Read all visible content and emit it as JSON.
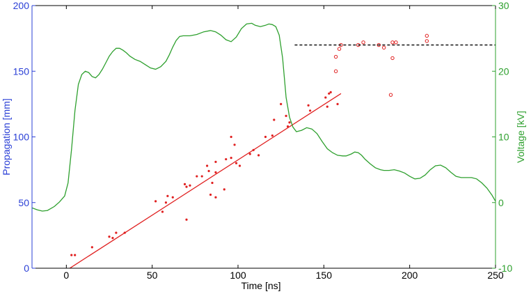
{
  "chart_data": {
    "type": "scatter",
    "xlabel": "Time [ns]",
    "ylabel_left": "Propagation [mm]",
    "ylabel_right": "Voltage [kV]",
    "xlim": [
      -20,
      250
    ],
    "ylim_left": [
      0,
      200
    ],
    "ylim_right": [
      -10,
      30
    ],
    "x_ticks": [
      0,
      50,
      100,
      150,
      200,
      250
    ],
    "y_ticks_left": [
      0,
      50,
      100,
      150,
      200
    ],
    "y_ticks_right": [
      -10,
      0,
      10,
      20,
      30
    ],
    "grid": false,
    "legend": "none",
    "colors": {
      "left_axis": "#2a3fd6",
      "right_axis": "#2ea02e",
      "points": "#e02020",
      "fit_line": "#e02020",
      "voltage": "#2ea02e",
      "reference": "#000000"
    },
    "series": [
      {
        "kind": "scatter-dots",
        "axis": "left",
        "points": [
          [
            3,
            10
          ],
          [
            5,
            10
          ],
          [
            15,
            16
          ],
          [
            25,
            24
          ],
          [
            27,
            23
          ],
          [
            29,
            27
          ],
          [
            34,
            27
          ],
          [
            52,
            51
          ],
          [
            56,
            43
          ],
          [
            58,
            50
          ],
          [
            59,
            55
          ],
          [
            62,
            54
          ],
          [
            69,
            64
          ],
          [
            70,
            37
          ],
          [
            70,
            62
          ],
          [
            72,
            63
          ],
          [
            76,
            70
          ],
          [
            79,
            70
          ],
          [
            83,
            74
          ],
          [
            82,
            78
          ],
          [
            85,
            65
          ],
          [
            84,
            56
          ],
          [
            87,
            73
          ],
          [
            87,
            54
          ],
          [
            87,
            81
          ],
          [
            92,
            60
          ],
          [
            93,
            83
          ],
          [
            96,
            84
          ],
          [
            96,
            100
          ],
          [
            98,
            94
          ],
          [
            99,
            80
          ],
          [
            101,
            78
          ],
          [
            107,
            87
          ],
          [
            109,
            90
          ],
          [
            112,
            86
          ],
          [
            116,
            100
          ],
          [
            120,
            101
          ],
          [
            121,
            113
          ],
          [
            125,
            125
          ],
          [
            128,
            116
          ],
          [
            129,
            108
          ],
          [
            130,
            111
          ],
          [
            141,
            124
          ],
          [
            142,
            120
          ],
          [
            151,
            130
          ],
          [
            152,
            123
          ],
          [
            153,
            133
          ],
          [
            154,
            134
          ],
          [
            158,
            125
          ]
        ]
      },
      {
        "kind": "scatter-circles",
        "axis": "left",
        "points": [
          [
            157,
            150
          ],
          [
            157,
            161
          ],
          [
            159,
            167
          ],
          [
            160,
            170
          ],
          [
            170,
            170
          ],
          [
            173,
            172
          ],
          [
            182,
            170
          ],
          [
            185,
            168
          ],
          [
            189,
            132
          ],
          [
            190,
            172
          ],
          [
            190,
            160
          ],
          [
            192,
            172
          ],
          [
            210,
            177
          ],
          [
            210,
            173
          ]
        ]
      },
      {
        "kind": "fit-line",
        "axis": "left",
        "points": [
          [
            2,
            0
          ],
          [
            160,
            133
          ]
        ]
      },
      {
        "kind": "reference-line",
        "axis": "left",
        "points": [
          [
            133,
            170
          ],
          [
            250,
            170
          ]
        ]
      },
      {
        "kind": "voltage-line",
        "axis": "right",
        "points": [
          [
            -20,
            -0.8
          ],
          [
            -17,
            -1.1
          ],
          [
            -14,
            -1.3
          ],
          [
            -11,
            -1.2
          ],
          [
            -7,
            -0.6
          ],
          [
            -4,
            0.1
          ],
          [
            -1,
            1
          ],
          [
            1,
            3
          ],
          [
            3,
            8
          ],
          [
            5,
            14
          ],
          [
            7,
            18
          ],
          [
            9,
            19.5
          ],
          [
            11,
            20
          ],
          [
            13,
            19.8
          ],
          [
            15,
            19.2
          ],
          [
            17,
            19
          ],
          [
            19,
            19.5
          ],
          [
            21,
            20.3
          ],
          [
            23,
            21.3
          ],
          [
            25,
            22.3
          ],
          [
            27,
            23
          ],
          [
            29,
            23.5
          ],
          [
            31,
            23.5
          ],
          [
            33,
            23.2
          ],
          [
            35,
            22.8
          ],
          [
            37,
            22.3
          ],
          [
            40,
            21.8
          ],
          [
            43,
            21.5
          ],
          [
            46,
            21
          ],
          [
            49,
            20.5
          ],
          [
            52,
            20.3
          ],
          [
            55,
            20.7
          ],
          [
            58,
            21.5
          ],
          [
            60,
            22.5
          ],
          [
            62,
            23.7
          ],
          [
            64,
            24.7
          ],
          [
            66,
            25.3
          ],
          [
            68,
            25.4
          ],
          [
            72,
            25.4
          ],
          [
            76,
            25.6
          ],
          [
            80,
            26
          ],
          [
            84,
            26.2
          ],
          [
            87,
            26
          ],
          [
            90,
            25.5
          ],
          [
            93,
            24.8
          ],
          [
            96,
            24.5
          ],
          [
            99,
            25.2
          ],
          [
            102,
            26.5
          ],
          [
            105,
            27.2
          ],
          [
            108,
            27.3
          ],
          [
            110,
            27
          ],
          [
            113,
            26.8
          ],
          [
            116,
            27
          ],
          [
            118,
            27.2
          ],
          [
            120,
            27.1
          ],
          [
            122,
            26.8
          ],
          [
            124,
            25.5
          ],
          [
            126,
            22
          ],
          [
            127,
            19
          ],
          [
            128,
            16
          ],
          [
            130,
            13
          ],
          [
            132,
            11.5
          ],
          [
            134,
            10.8
          ],
          [
            137,
            11
          ],
          [
            140,
            11.4
          ],
          [
            143,
            11.2
          ],
          [
            146,
            10.5
          ],
          [
            149,
            9.3
          ],
          [
            152,
            8.2
          ],
          [
            155,
            7.6
          ],
          [
            158,
            7.2
          ],
          [
            161,
            7.1
          ],
          [
            163,
            7.1
          ],
          [
            166,
            7.4
          ],
          [
            168,
            7.7
          ],
          [
            170,
            7.6
          ],
          [
            172,
            7.2
          ],
          [
            174,
            6.6
          ],
          [
            177,
            5.9
          ],
          [
            180,
            5.3
          ],
          [
            183,
            5
          ],
          [
            185,
            4.9
          ],
          [
            188,
            4.9
          ],
          [
            191,
            5
          ],
          [
            194,
            4.8
          ],
          [
            197,
            4.5
          ],
          [
            200,
            4
          ],
          [
            203,
            3.6
          ],
          [
            206,
            3.7
          ],
          [
            209,
            4.2
          ],
          [
            212,
            5
          ],
          [
            215,
            5.6
          ],
          [
            218,
            5.7
          ],
          [
            221,
            5.3
          ],
          [
            224,
            4.6
          ],
          [
            227,
            4
          ],
          [
            230,
            3.8
          ],
          [
            233,
            3.8
          ],
          [
            236,
            3.8
          ],
          [
            239,
            3.6
          ],
          [
            242,
            3
          ],
          [
            245,
            2.2
          ],
          [
            248,
            1.1
          ],
          [
            250,
            0.2
          ]
        ]
      }
    ]
  }
}
